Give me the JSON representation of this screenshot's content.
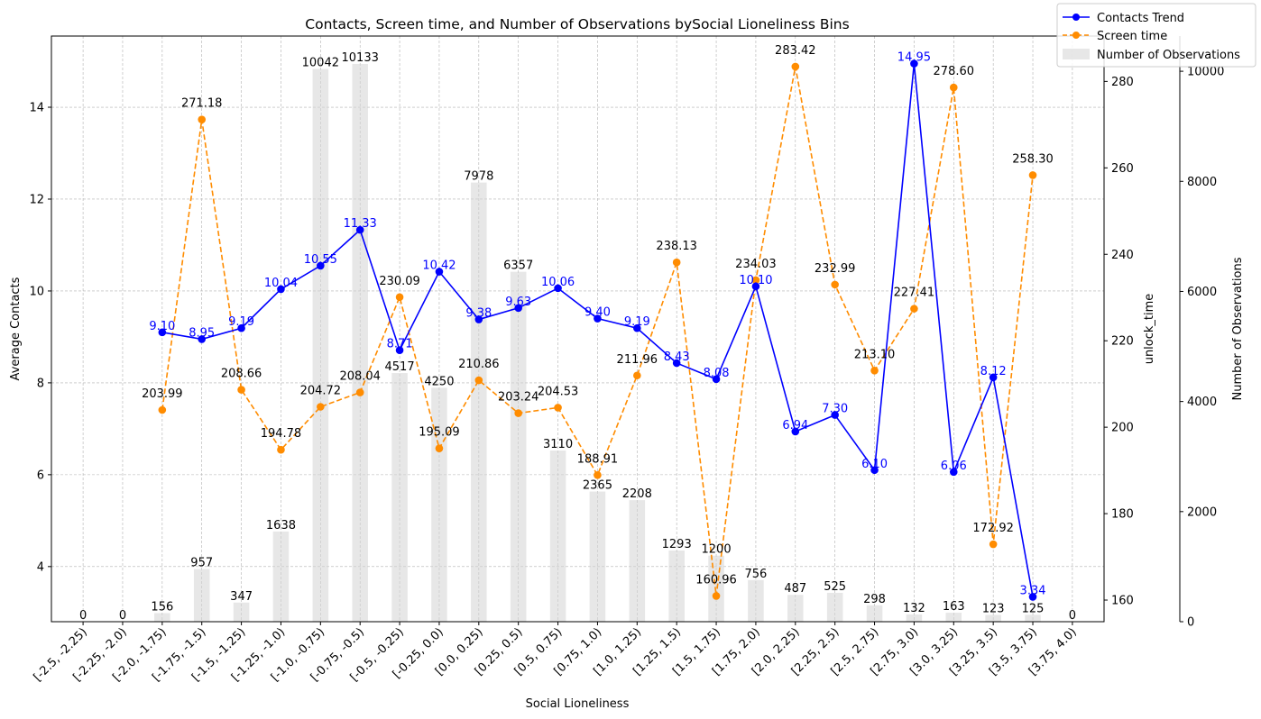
{
  "chart_data": {
    "type": "line",
    "title": "Contacts, Screen time, and Number of Observations bySocial Lioneliness Bins",
    "xlabel": "Social Lioneliness",
    "ylabel_left": "Average Contacts",
    "ylabel_right": "unlock_time",
    "ylabel_right2": "Number of Observations",
    "categories": [
      "[-2.5, -2.25)",
      "[-2.25, -2.0)",
      "[-2.0, -1.75)",
      "[-1.75, -1.5)",
      "[-1.5, -1.25)",
      "[-1.25, -1.0)",
      "[-1.0, -0.75)",
      "[-0.75, -0.5)",
      "[-0.5, -0.25)",
      "[-0.25, 0.0)",
      "[0.0, 0.25)",
      "[0.25, 0.5)",
      "[0.5, 0.75)",
      "[0.75, 1.0)",
      "[1.0, 1.25)",
      "[1.25, 1.5)",
      "[1.5, 1.75)",
      "[1.75, 2.0)",
      "[2.0, 2.25)",
      "[2.25, 2.5)",
      "[2.5, 2.75)",
      "[2.75, 3.0)",
      "[3.0, 3.25)",
      "[3.25, 3.5)",
      "[3.5, 3.75)",
      "[3.75, 4.0)"
    ],
    "series": [
      {
        "name": "Contacts Trend",
        "axis": "left",
        "color": "#0000ff",
        "style": "solid",
        "values": [
          null,
          null,
          9.1,
          8.95,
          9.19,
          10.04,
          10.55,
          11.33,
          8.71,
          10.42,
          9.38,
          9.63,
          10.06,
          9.4,
          9.19,
          8.43,
          8.08,
          10.1,
          6.94,
          7.3,
          6.1,
          14.95,
          6.06,
          8.12,
          3.34,
          null
        ],
        "labels": [
          null,
          null,
          "9.10",
          "8.95",
          "9.19",
          "10.04",
          "10.55",
          "11.33",
          "8.71",
          "10.42",
          "9.38",
          "9.63",
          "10.06",
          "9.40",
          "9.19",
          "8.43",
          "8.08",
          "10.10",
          "6.94",
          "7.30",
          "6.10",
          "14.95",
          "6.06",
          "8.12",
          "3.34",
          null
        ]
      },
      {
        "name": "Screen time",
        "axis": "right",
        "color": "#ff8c00",
        "style": "dashed",
        "values": [
          null,
          null,
          203.99,
          271.18,
          208.66,
          194.78,
          204.72,
          208.04,
          230.09,
          195.09,
          210.86,
          203.24,
          204.53,
          188.91,
          211.96,
          238.13,
          160.96,
          234.03,
          283.42,
          232.99,
          213.1,
          227.41,
          278.6,
          172.92,
          258.3,
          null
        ],
        "labels": [
          null,
          null,
          "203.99",
          "271.18",
          "208.66",
          "194.78",
          "204.72",
          "208.04",
          "230.09",
          "195.09",
          "210.86",
          "203.24",
          "204.53",
          "188.91",
          "211.96",
          "238.13",
          "160.96",
          "234.03",
          "283.42",
          "232.99",
          "213.10",
          "227.41",
          "278.60",
          "172.92",
          "258.30",
          null
        ]
      },
      {
        "name": "Number of Observations",
        "axis": "right2",
        "color": "#d3d3d3",
        "style": "bar",
        "values": [
          0,
          0,
          156,
          957,
          347,
          1638,
          10042,
          10133,
          4517,
          4250,
          7978,
          6357,
          3110,
          2365,
          2208,
          1293,
          1200,
          756,
          487,
          525,
          298,
          132,
          163,
          123,
          125,
          0
        ],
        "labels": [
          "0",
          "0",
          "156",
          "957",
          "347",
          "1638",
          "10042",
          "10133",
          "4517",
          "4250",
          "7978",
          "6357",
          "3110",
          "2365",
          "2208",
          "1293",
          "1200",
          "756",
          "487",
          "525",
          "298",
          "132",
          "163",
          "123",
          "125",
          "0"
        ]
      }
    ],
    "ylim_left": [
      2.8,
      15.55
    ],
    "ylim_right": [
      155,
      290.5
    ],
    "ylim_right2": [
      0,
      10640
    ],
    "yticks_left": [
      4,
      6,
      8,
      10,
      12,
      14
    ],
    "yticks_left_labels": [
      "4",
      "6",
      "8",
      "10",
      "12",
      "14"
    ],
    "yticks_right": [
      160,
      180,
      200,
      220,
      240,
      260,
      280
    ],
    "yticks_right_labels": [
      "160",
      "180",
      "200",
      "220",
      "240",
      "260",
      "280"
    ],
    "yticks_right2": [
      0,
      2000,
      4000,
      6000,
      8000,
      10000
    ],
    "yticks_right2_labels": [
      "0",
      "2000",
      "4000",
      "6000",
      "8000",
      "10000"
    ],
    "grid": true,
    "legend": "top-right"
  }
}
